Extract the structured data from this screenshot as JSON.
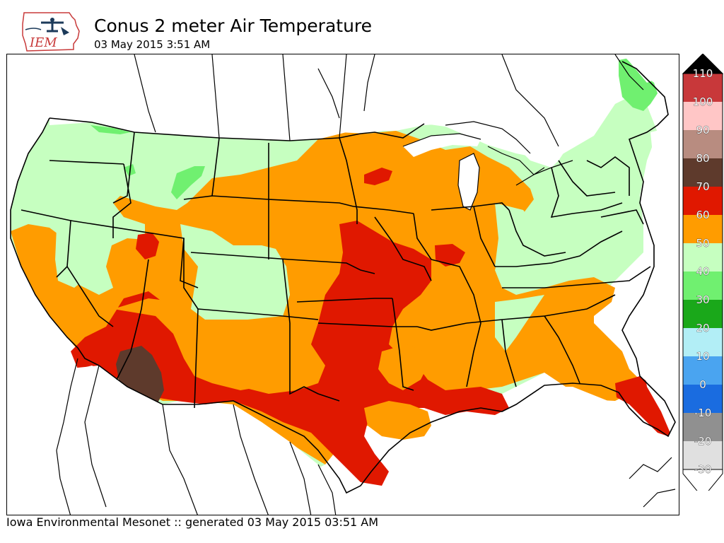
{
  "header": {
    "logo_text": "IEM",
    "title": "Conus 2 meter Air Temperature",
    "subtitle": "03 May 2015 3:51 AM"
  },
  "footer": {
    "text": "Iowa Environmental Mesonet :: generated 03 May 2015 03:51 AM"
  },
  "legend": {
    "levels": [
      {
        "label": "110",
        "color": "#c8383a"
      },
      {
        "label": "100",
        "color": "#ffc6c6"
      },
      {
        "label": "90",
        "color": "#b88c80"
      },
      {
        "label": "80",
        "color": "#5e3a2c"
      },
      {
        "label": "70",
        "color": "#e01800"
      },
      {
        "label": "60",
        "color": "#ff9c00"
      },
      {
        "label": "50",
        "color": "#c6ffc0"
      },
      {
        "label": "40",
        "color": "#70f070"
      },
      {
        "label": "30",
        "color": "#1aa81a"
      },
      {
        "label": "20",
        "color": "#b2eef6"
      },
      {
        "label": "10",
        "color": "#4aa4f0"
      },
      {
        "label": "0",
        "color": "#1a6ce0"
      },
      {
        "label": "-10",
        "color": "#909090"
      },
      {
        "label": "-20",
        "color": "#e0e0e0"
      },
      {
        "label": "-30",
        "color": "#ffffff"
      }
    ],
    "over_color": "#000000",
    "under_color": "#ffffff"
  },
  "map_colors": {
    "temp_50_60": "#c6ffc0",
    "temp_60_70": "#ff9c00",
    "temp_70_80": "#e01800",
    "temp_80_90": "#5e3a2c",
    "temp_40_50": "#70f070",
    "no_data": "#ffffff",
    "boundaries": "#000000"
  }
}
